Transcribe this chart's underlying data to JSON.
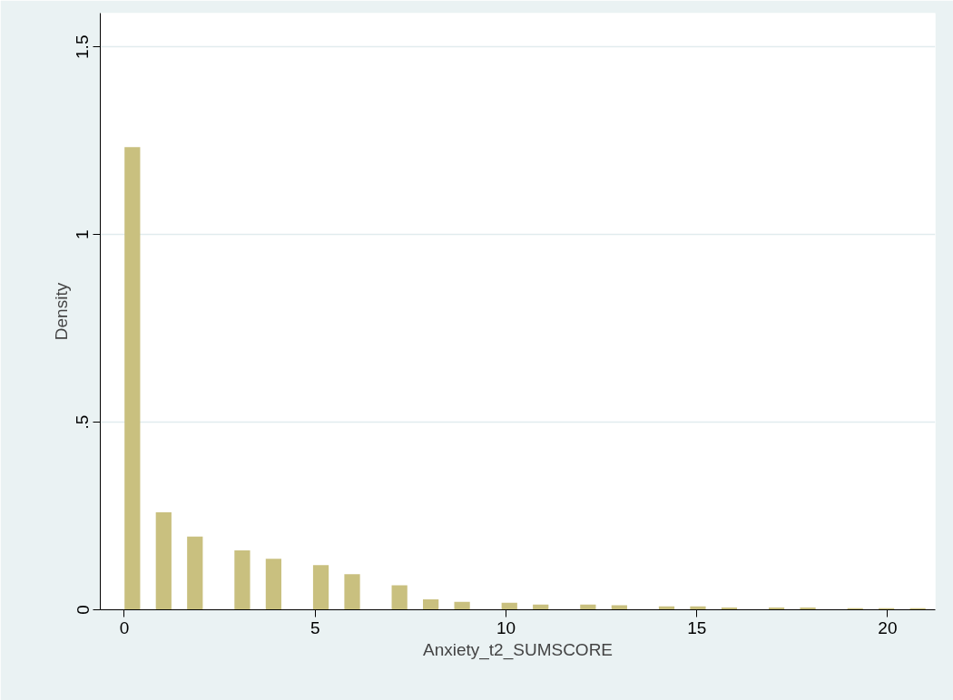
{
  "chart_data": {
    "type": "bar",
    "xlabel": "Anxiety_t2_SUMSCORE",
    "ylabel": "Density",
    "x": [
      0.21,
      1.03,
      1.85,
      3.09,
      3.91,
      5.15,
      5.97,
      7.21,
      8.03,
      8.85,
      10.09,
      10.91,
      12.15,
      12.97,
      14.21,
      15.03,
      15.85,
      17.09,
      17.91,
      19.15,
      19.97,
      20.79
    ],
    "values": [
      1.233,
      0.26,
      0.195,
      0.158,
      0.136,
      0.119,
      0.095,
      0.065,
      0.028,
      0.021,
      0.019,
      0.014,
      0.014,
      0.012,
      0.009,
      0.009,
      0.006,
      0.006,
      0.006,
      0.004,
      0.004,
      0.004
    ],
    "color": "#c9c07f",
    "xlim": [
      -0.63,
      21.25
    ],
    "ylim": [
      0,
      1.59
    ],
    "xticks": [
      0,
      5,
      10,
      15,
      20
    ],
    "yticks": [
      0,
      {
        "value": 0.5,
        "label": ".5"
      },
      1,
      1.5
    ],
    "grid": "y"
  }
}
